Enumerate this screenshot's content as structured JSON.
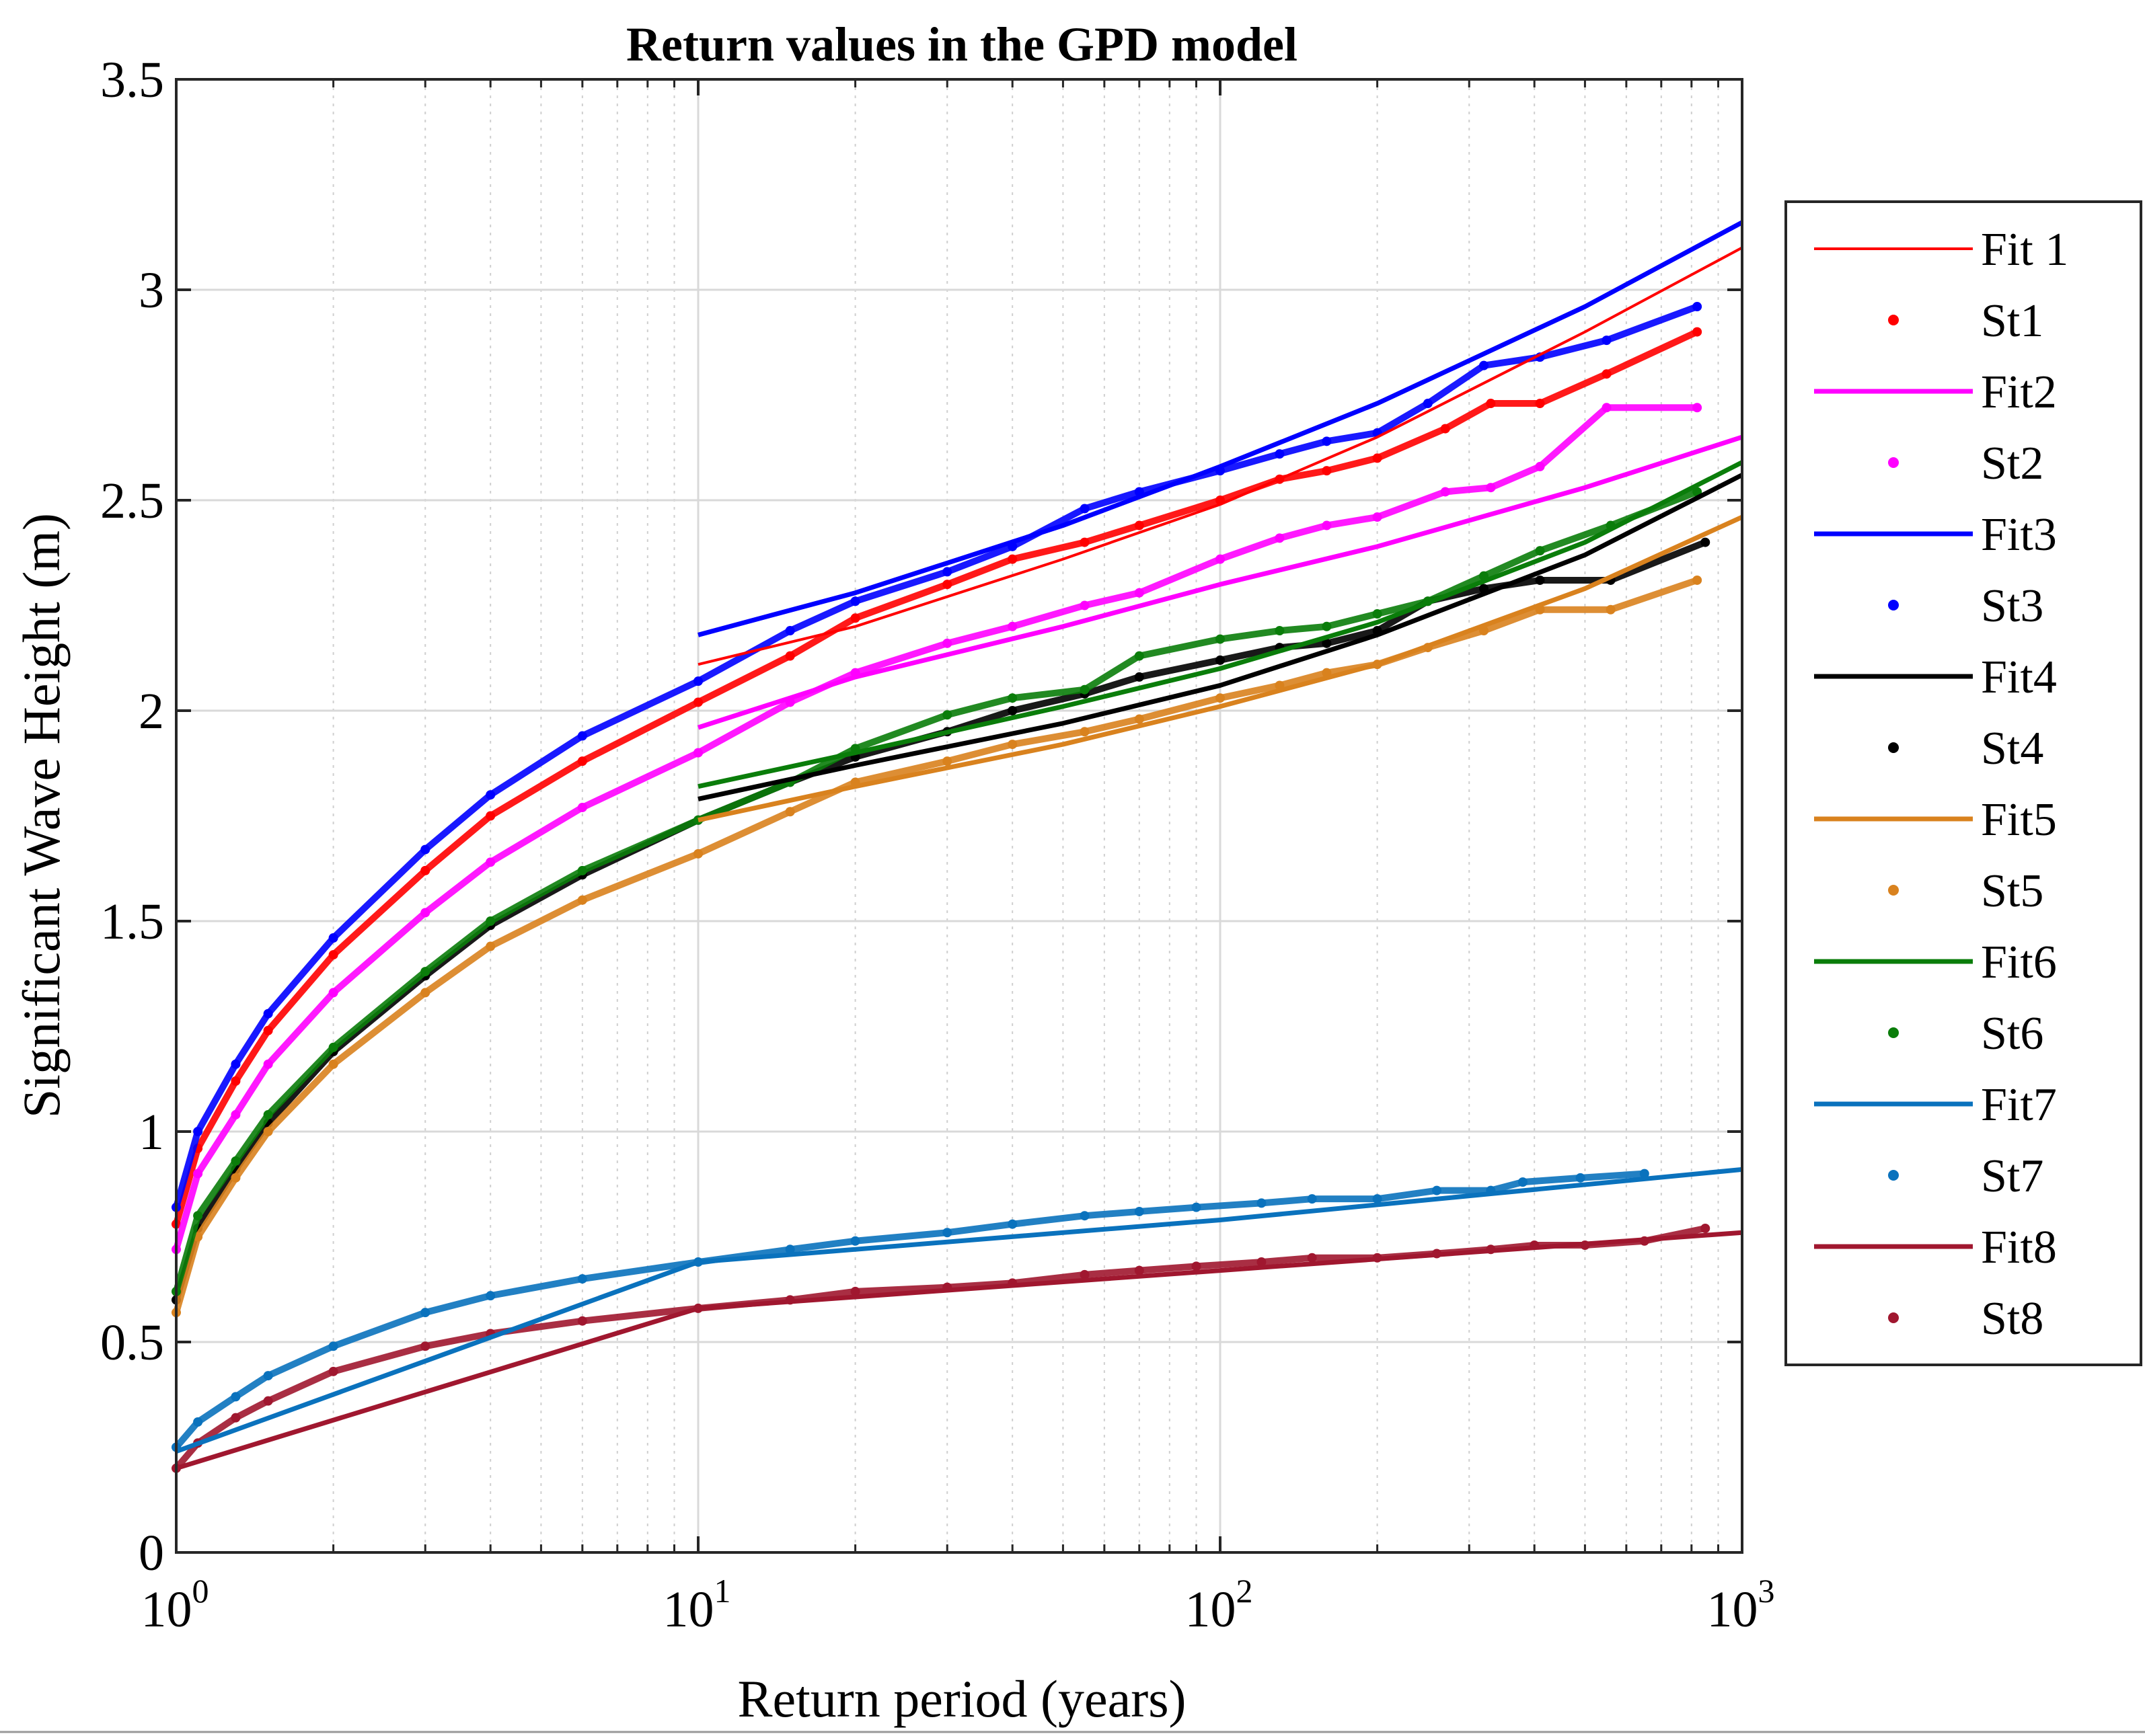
{
  "chart_data": {
    "type": "line",
    "title": "Return values in the GPD model",
    "xlabel": "Return period (years)",
    "ylabel": "Significant Wave Height (m)",
    "xscale": "log",
    "xlim": [
      1,
      1000
    ],
    "ylim": [
      0,
      3.5
    ],
    "grid": true,
    "legend_position": "outside-right",
    "x_ticks": [
      {
        "base": "10",
        "exp": "0",
        "value": 1
      },
      {
        "base": "10",
        "exp": "1",
        "value": 10
      },
      {
        "base": "10",
        "exp": "2",
        "value": 100
      },
      {
        "base": "10",
        "exp": "3",
        "value": 1000
      }
    ],
    "y_ticks": [
      {
        "label": "0",
        "value": 0
      },
      {
        "label": "0.5",
        "value": 0.5
      },
      {
        "label": "1",
        "value": 1
      },
      {
        "label": "1.5",
        "value": 1.5
      },
      {
        "label": "2",
        "value": 2
      },
      {
        "label": "2.5",
        "value": 2.5
      },
      {
        "label": "3",
        "value": 3
      },
      {
        "label": "3.5",
        "value": 3.5
      }
    ],
    "fits": [
      {
        "name": "Fit 1",
        "color": "#ff0000",
        "width": 4,
        "x": [
          10,
          20,
          50,
          100,
          200,
          500,
          1000
        ],
        "y": [
          2.11,
          2.2,
          2.36,
          2.49,
          2.65,
          2.9,
          3.1
        ]
      },
      {
        "name": "Fit2",
        "color": "#ff00ff",
        "width": 7,
        "x": [
          10,
          20,
          50,
          100,
          200,
          500,
          1000
        ],
        "y": [
          1.96,
          2.08,
          2.2,
          2.3,
          2.39,
          2.53,
          2.65
        ]
      },
      {
        "name": "Fit3",
        "color": "#0000ff",
        "width": 7,
        "x": [
          10,
          20,
          50,
          100,
          200,
          500,
          1000
        ],
        "y": [
          2.18,
          2.28,
          2.44,
          2.58,
          2.73,
          2.96,
          3.16
        ]
      },
      {
        "name": "Fit4",
        "color": "#000000",
        "width": 7,
        "x": [
          10,
          20,
          50,
          100,
          200,
          500,
          1000
        ],
        "y": [
          1.79,
          1.87,
          1.97,
          2.06,
          2.18,
          2.37,
          2.56
        ]
      },
      {
        "name": "Fit5",
        "color": "#d9821e",
        "width": 7,
        "x": [
          10,
          20,
          50,
          100,
          200,
          500,
          1000
        ],
        "y": [
          1.74,
          1.82,
          1.92,
          2.01,
          2.11,
          2.29,
          2.46
        ]
      },
      {
        "name": "Fit6",
        "color": "#0a7d0a",
        "width": 7,
        "x": [
          10,
          20,
          50,
          100,
          200,
          500,
          1000
        ],
        "y": [
          1.82,
          1.9,
          2.01,
          2.1,
          2.21,
          2.4,
          2.59
        ]
      },
      {
        "name": "Fit7",
        "color": "#0a72bd",
        "width": 7,
        "x": [
          1,
          10,
          100,
          1000
        ],
        "y": [
          0.24,
          0.69,
          0.79,
          0.91
        ]
      },
      {
        "name": "Fit8",
        "color": "#a0172f",
        "width": 7,
        "x": [
          1,
          10,
          100,
          1000
        ],
        "y": [
          0.2,
          0.58,
          0.67,
          0.76
        ]
      }
    ],
    "stations": [
      {
        "name": "St1",
        "color": "#ff0000",
        "x": [
          1,
          1.1,
          1.3,
          1.5,
          2,
          3,
          4,
          6,
          10,
          15,
          20,
          30,
          40,
          55,
          70,
          100,
          130,
          160,
          200,
          270,
          330,
          410,
          550,
          820
        ],
        "y": [
          0.78,
          0.96,
          1.12,
          1.24,
          1.42,
          1.62,
          1.75,
          1.88,
          2.02,
          2.13,
          2.22,
          2.3,
          2.36,
          2.4,
          2.44,
          2.5,
          2.55,
          2.57,
          2.6,
          2.67,
          2.73,
          2.73,
          2.8,
          2.9
        ]
      },
      {
        "name": "St2",
        "color": "#ff00ff",
        "x": [
          1,
          1.1,
          1.3,
          1.5,
          2,
          3,
          4,
          6,
          10,
          15,
          20,
          30,
          40,
          55,
          70,
          100,
          130,
          160,
          200,
          270,
          330,
          410,
          550,
          820
        ],
        "y": [
          0.72,
          0.9,
          1.04,
          1.16,
          1.33,
          1.52,
          1.64,
          1.77,
          1.9,
          2.02,
          2.09,
          2.16,
          2.2,
          2.25,
          2.28,
          2.36,
          2.41,
          2.44,
          2.46,
          2.52,
          2.53,
          2.58,
          2.72,
          2.72
        ]
      },
      {
        "name": "St3",
        "color": "#0000ff",
        "x": [
          1,
          1.1,
          1.3,
          1.5,
          2,
          3,
          4,
          6,
          10,
          15,
          20,
          30,
          40,
          55,
          70,
          100,
          130,
          160,
          200,
          250,
          320,
          410,
          550,
          820
        ],
        "y": [
          0.82,
          1.0,
          1.16,
          1.28,
          1.46,
          1.67,
          1.8,
          1.94,
          2.07,
          2.19,
          2.26,
          2.33,
          2.39,
          2.48,
          2.52,
          2.57,
          2.61,
          2.64,
          2.66,
          2.73,
          2.82,
          2.84,
          2.88,
          2.96
        ]
      },
      {
        "name": "St4",
        "color": "#000000",
        "x": [
          1,
          1.1,
          1.3,
          1.5,
          2,
          3,
          4,
          6,
          10,
          15,
          20,
          30,
          40,
          55,
          70,
          100,
          130,
          160,
          200,
          250,
          320,
          410,
          560,
          850
        ],
        "y": [
          0.6,
          0.77,
          0.91,
          1.02,
          1.19,
          1.37,
          1.49,
          1.61,
          1.74,
          1.83,
          1.89,
          1.95,
          2.0,
          2.04,
          2.08,
          2.12,
          2.15,
          2.16,
          2.19,
          2.26,
          2.29,
          2.31,
          2.31,
          2.4
        ]
      },
      {
        "name": "St5",
        "color": "#d9821e",
        "x": [
          1,
          1.1,
          1.3,
          1.5,
          2,
          3,
          4,
          6,
          10,
          15,
          20,
          30,
          40,
          55,
          70,
          100,
          130,
          160,
          200,
          250,
          320,
          410,
          560,
          820
        ],
        "y": [
          0.57,
          0.75,
          0.89,
          1.0,
          1.16,
          1.33,
          1.44,
          1.55,
          1.66,
          1.76,
          1.83,
          1.88,
          1.92,
          1.95,
          1.98,
          2.03,
          2.06,
          2.09,
          2.11,
          2.15,
          2.19,
          2.24,
          2.24,
          2.31
        ]
      },
      {
        "name": "St6",
        "color": "#0a7d0a",
        "x": [
          1,
          1.1,
          1.3,
          1.5,
          2,
          3,
          4,
          6,
          10,
          15,
          20,
          30,
          40,
          55,
          70,
          100,
          130,
          160,
          200,
          250,
          320,
          410,
          560,
          820
        ],
        "y": [
          0.62,
          0.8,
          0.93,
          1.04,
          1.2,
          1.38,
          1.5,
          1.62,
          1.74,
          1.83,
          1.91,
          1.99,
          2.03,
          2.05,
          2.13,
          2.17,
          2.19,
          2.2,
          2.23,
          2.26,
          2.32,
          2.38,
          2.44,
          2.52
        ]
      },
      {
        "name": "St7",
        "color": "#0a72bd",
        "x": [
          1,
          1.1,
          1.3,
          1.5,
          2,
          3,
          4,
          6,
          10,
          15,
          20,
          30,
          40,
          55,
          70,
          90,
          120,
          150,
          200,
          260,
          330,
          380,
          490,
          650
        ],
        "y": [
          0.25,
          0.31,
          0.37,
          0.42,
          0.49,
          0.57,
          0.61,
          0.65,
          0.69,
          0.72,
          0.74,
          0.76,
          0.78,
          0.8,
          0.81,
          0.82,
          0.83,
          0.84,
          0.84,
          0.86,
          0.86,
          0.88,
          0.89,
          0.9
        ]
      },
      {
        "name": "St8",
        "color": "#a0172f",
        "x": [
          1,
          1.1,
          1.3,
          1.5,
          2,
          3,
          4,
          6,
          10,
          15,
          20,
          30,
          40,
          55,
          70,
          90,
          120,
          150,
          200,
          260,
          330,
          400,
          500,
          650,
          850
        ],
        "y": [
          0.2,
          0.26,
          0.32,
          0.36,
          0.43,
          0.49,
          0.52,
          0.55,
          0.58,
          0.6,
          0.62,
          0.63,
          0.64,
          0.66,
          0.67,
          0.68,
          0.69,
          0.7,
          0.7,
          0.71,
          0.72,
          0.73,
          0.73,
          0.74,
          0.77
        ]
      }
    ],
    "legend": [
      {
        "label": "Fit 1",
        "kind": "line",
        "color": "#ff0000"
      },
      {
        "label": "St1",
        "kind": "dot",
        "color": "#ff0000"
      },
      {
        "label": "Fit2",
        "kind": "line",
        "color": "#ff00ff"
      },
      {
        "label": "St2",
        "kind": "dot",
        "color": "#ff00ff"
      },
      {
        "label": "Fit3",
        "kind": "line",
        "color": "#0000ff"
      },
      {
        "label": "St3",
        "kind": "dot",
        "color": "#0000ff"
      },
      {
        "label": "Fit4",
        "kind": "line",
        "color": "#000000"
      },
      {
        "label": "St4",
        "kind": "dot",
        "color": "#000000"
      },
      {
        "label": "Fit5",
        "kind": "line",
        "color": "#d9821e"
      },
      {
        "label": "St5",
        "kind": "dot",
        "color": "#d9821e"
      },
      {
        "label": "Fit6",
        "kind": "line",
        "color": "#0a7d0a"
      },
      {
        "label": "St6",
        "kind": "dot",
        "color": "#0a7d0a"
      },
      {
        "label": "Fit7",
        "kind": "line",
        "color": "#0a72bd"
      },
      {
        "label": "St7",
        "kind": "dot",
        "color": "#0a72bd"
      },
      {
        "label": "Fit8",
        "kind": "line",
        "color": "#a0172f"
      },
      {
        "label": "St8",
        "kind": "dot",
        "color": "#a0172f"
      }
    ]
  }
}
